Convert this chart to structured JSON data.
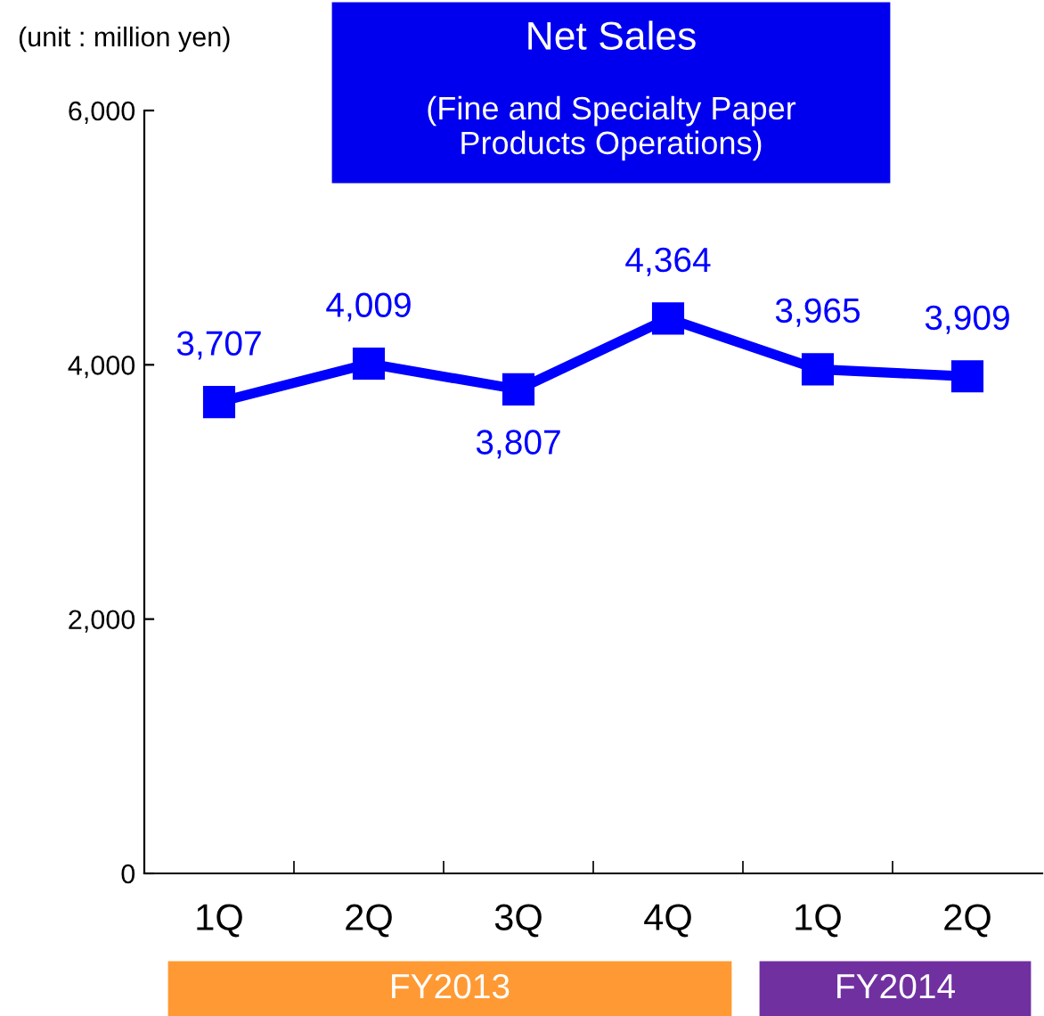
{
  "chart_data": {
    "type": "line",
    "title": "Net Sales",
    "subtitle": "(Fine and Specialty Paper\nProducts Operations)",
    "annotations": [
      "(unit : million yen)",
      "FY2013",
      "FY2014"
    ],
    "categories": [
      "1Q",
      "2Q",
      "3Q",
      "4Q",
      "1Q",
      "2Q"
    ],
    "series": [
      {
        "color": "#0000ff",
        "values": [
          3707,
          4009,
          3807,
          4364,
          3965,
          3909
        ],
        "value_labels": [
          "3,707",
          "4,009",
          "3,807",
          "4,364",
          "3,965",
          "3,909"
        ]
      }
    ],
    "ylim": [
      0,
      6000
    ],
    "yticks": [
      0,
      {
        "value": 2000,
        "label": "2,000"
      },
      {
        "value": 4000,
        "label": "4,000"
      },
      {
        "value": 6000,
        "label": "6,000"
      }
    ],
    "marker": "square",
    "line_style": "solid",
    "grid": false,
    "legend": false
  }
}
